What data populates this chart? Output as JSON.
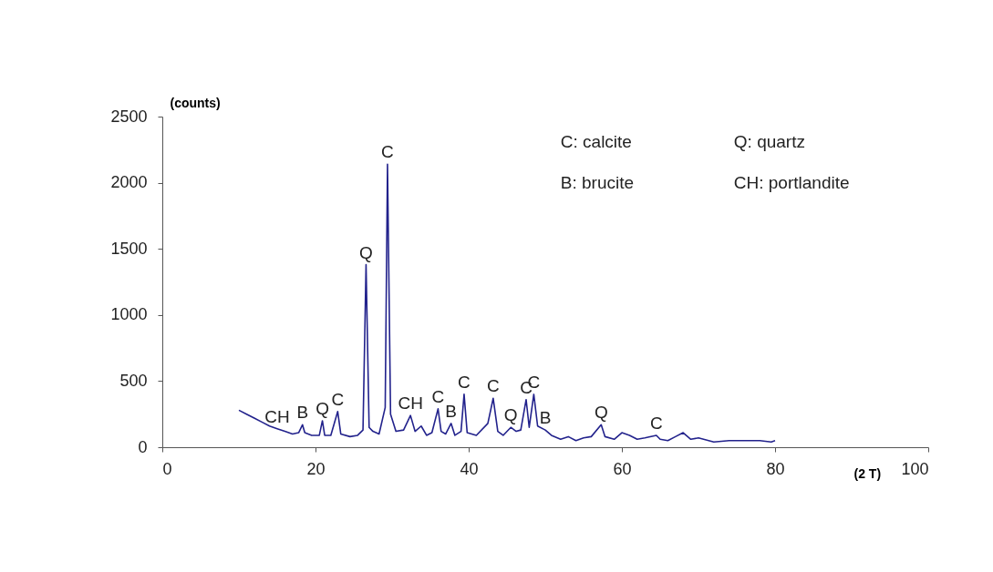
{
  "chart_data": {
    "type": "line",
    "xlabel": "(2 T)",
    "ylabel": "(counts)",
    "xlim": [
      0,
      100
    ],
    "xticks": [
      0,
      20,
      40,
      60,
      80,
      100
    ],
    "ylim": [
      0,
      2500
    ],
    "yticks": [
      0,
      500,
      1000,
      1500,
      2000,
      2500
    ],
    "grid": false,
    "marker": "none",
    "line_style": "solid",
    "series": [
      {
        "color": "#22228c",
        "x": [
          10,
          11,
          12,
          13,
          14,
          15,
          16,
          17,
          17.8,
          18.3,
          18.6,
          19.5,
          20.5,
          20.9,
          21.2,
          22,
          22.9,
          23.3,
          24.5,
          25.5,
          26.2,
          26.6,
          27.0,
          27.5,
          28.3,
          29.1,
          29.4,
          29.8,
          30.5,
          31.5,
          32.4,
          33,
          33.8,
          34.5,
          35.2,
          36.0,
          36.4,
          37,
          37.7,
          38.2,
          39.0,
          39.4,
          39.8,
          41,
          42.5,
          43.2,
          43.8,
          44.5,
          45.5,
          46.2,
          46.8,
          47.5,
          47.9,
          48.5,
          49,
          50,
          50.8,
          52,
          53,
          54,
          55,
          56,
          57.3,
          57.8,
          59,
          60,
          61,
          62,
          63,
          64.5,
          65,
          66,
          67,
          68,
          69,
          70,
          72,
          74,
          76,
          78,
          79.5,
          80
        ],
        "values": [
          280,
          250,
          220,
          190,
          160,
          140,
          120,
          100,
          110,
          170,
          110,
          90,
          90,
          200,
          90,
          90,
          270,
          100,
          80,
          90,
          130,
          1380,
          150,
          120,
          100,
          300,
          2140,
          250,
          120,
          130,
          240,
          120,
          160,
          90,
          110,
          290,
          120,
          100,
          180,
          90,
          120,
          400,
          110,
          90,
          180,
          370,
          120,
          90,
          150,
          120,
          130,
          360,
          150,
          400,
          160,
          130,
          90,
          60,
          80,
          50,
          70,
          80,
          170,
          80,
          60,
          110,
          90,
          60,
          70,
          90,
          60,
          50,
          80,
          110,
          60,
          70,
          40,
          50,
          50,
          50,
          40,
          50
        ]
      }
    ],
    "annotations": [
      {
        "text": "CH",
        "x": 15,
        "y": 140
      },
      {
        "text": "B",
        "x": 18.3,
        "y": 170
      },
      {
        "text": "Q",
        "x": 20.9,
        "y": 200
      },
      {
        "text": "C",
        "x": 22.9,
        "y": 270
      },
      {
        "text": "Q",
        "x": 26.6,
        "y": 1380
      },
      {
        "text": "C",
        "x": 29.4,
        "y": 2140
      },
      {
        "text": "CH",
        "x": 32.4,
        "y": 240
      },
      {
        "text": "C",
        "x": 36.0,
        "y": 290
      },
      {
        "text": "B",
        "x": 37.7,
        "y": 180
      },
      {
        "text": "C",
        "x": 39.4,
        "y": 400
      },
      {
        "text": "C",
        "x": 43.2,
        "y": 370
      },
      {
        "text": "Q",
        "x": 45.5,
        "y": 150
      },
      {
        "text": "C",
        "x": 47.5,
        "y": 360
      },
      {
        "text": "C",
        "x": 48.5,
        "y": 400
      },
      {
        "text": "B",
        "x": 50,
        "y": 130
      },
      {
        "text": "Q",
        "x": 57.3,
        "y": 170
      },
      {
        "text": "C",
        "x": 64.5,
        "y": 90
      },
      "C: calcite",
      "Q: quartz",
      "B: brucite",
      "CH: portlandite"
    ]
  }
}
